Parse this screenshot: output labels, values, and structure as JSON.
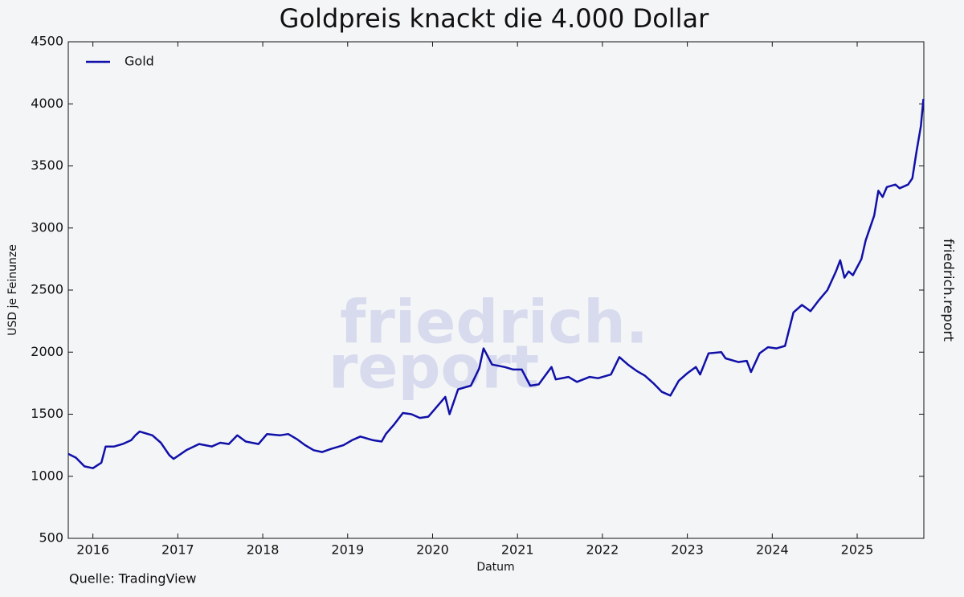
{
  "chart_data": {
    "type": "line",
    "title": "Goldpreis knackt die 4.000 Dollar",
    "xlabel": "Datum",
    "ylabel": "USD je Feinunze",
    "source": "Quelle: TradingView",
    "side_label": "friedrich.report",
    "watermark": [
      "friedrich.",
      "report"
    ],
    "x": [
      2015.71,
      2015.8,
      2015.9,
      2016.0,
      2016.1,
      2016.15,
      2016.25,
      2016.35,
      2016.45,
      2016.5,
      2016.55,
      2016.7,
      2016.8,
      2016.9,
      2016.95,
      2017.1,
      2017.25,
      2017.4,
      2017.5,
      2017.6,
      2017.7,
      2017.8,
      2017.95,
      2018.05,
      2018.2,
      2018.3,
      2018.4,
      2018.5,
      2018.6,
      2018.7,
      2018.8,
      2018.95,
      2019.05,
      2019.15,
      2019.3,
      2019.4,
      2019.45,
      2019.55,
      2019.65,
      2019.75,
      2019.85,
      2019.95,
      2020.05,
      2020.15,
      2020.2,
      2020.3,
      2020.45,
      2020.55,
      2020.6,
      2020.7,
      2020.85,
      2020.95,
      2021.05,
      2021.15,
      2021.25,
      2021.4,
      2021.45,
      2021.6,
      2021.7,
      2021.85,
      2021.95,
      2022.1,
      2022.2,
      2022.3,
      2022.4,
      2022.5,
      2022.6,
      2022.7,
      2022.8,
      2022.9,
      2023.0,
      2023.1,
      2023.15,
      2023.25,
      2023.4,
      2023.45,
      2023.6,
      2023.7,
      2023.75,
      2023.85,
      2023.95,
      2024.05,
      2024.15,
      2024.25,
      2024.35,
      2024.45,
      2024.55,
      2024.65,
      2024.75,
      2024.8,
      2024.85,
      2024.9,
      2024.95,
      2025.05,
      2025.1,
      2025.2,
      2025.25,
      2025.3,
      2025.35,
      2025.45,
      2025.5,
      2025.6,
      2025.65,
      2025.7,
      2025.75,
      2025.78
    ],
    "series": [
      {
        "name": "Gold",
        "color": "#1010a8",
        "values": [
          1180,
          1150,
          1080,
          1065,
          1110,
          1240,
          1240,
          1260,
          1290,
          1330,
          1360,
          1330,
          1270,
          1170,
          1140,
          1210,
          1260,
          1240,
          1270,
          1260,
          1330,
          1280,
          1260,
          1340,
          1330,
          1340,
          1300,
          1250,
          1210,
          1195,
          1220,
          1250,
          1290,
          1320,
          1290,
          1280,
          1340,
          1420,
          1510,
          1500,
          1470,
          1480,
          1560,
          1640,
          1500,
          1700,
          1730,
          1870,
          2030,
          1900,
          1880,
          1860,
          1860,
          1730,
          1740,
          1880,
          1780,
          1800,
          1760,
          1800,
          1790,
          1820,
          1960,
          1900,
          1850,
          1810,
          1750,
          1680,
          1650,
          1770,
          1830,
          1880,
          1820,
          1990,
          2000,
          1950,
          1920,
          1930,
          1840,
          1990,
          2040,
          2030,
          2050,
          2320,
          2380,
          2330,
          2420,
          2500,
          2650,
          2740,
          2600,
          2650,
          2620,
          2750,
          2900,
          3100,
          3300,
          3250,
          3330,
          3350,
          3320,
          3350,
          3400,
          3620,
          3820,
          4040
        ]
      }
    ],
    "xlim": [
      2015.71,
      2025.785
    ],
    "xticks": [
      2016,
      2017,
      2018,
      2019,
      2020,
      2021,
      2022,
      2023,
      2024,
      2025
    ],
    "ylim": [
      500,
      4500
    ],
    "yticks": [
      500,
      1000,
      1500,
      2000,
      2500,
      3000,
      3500,
      4000,
      4500
    ],
    "grid": false,
    "legend": "upper left"
  }
}
